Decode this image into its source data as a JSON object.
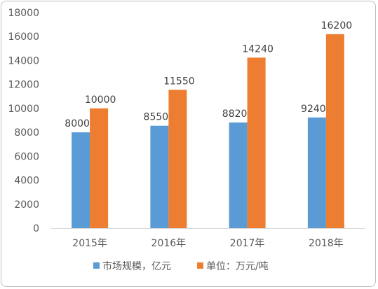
{
  "chart_data": {
    "type": "bar",
    "categories": [
      "2015年",
      "2016年",
      "2017年",
      "2018年"
    ],
    "series": [
      {
        "name": "市场规模，亿元",
        "values": [
          8000,
          8550,
          8820,
          9240
        ],
        "color": "#5b9bd5"
      },
      {
        "name": "单位：万元/吨",
        "values": [
          10000,
          11550,
          14240,
          16200
        ],
        "color": "#ed7d31"
      }
    ],
    "ylim": [
      0,
      18000
    ],
    "yticks": [
      0,
      2000,
      4000,
      6000,
      8000,
      10000,
      12000,
      14000,
      16000,
      18000
    ],
    "grid": false,
    "legend_position": "bottom",
    "data_labels": true
  }
}
